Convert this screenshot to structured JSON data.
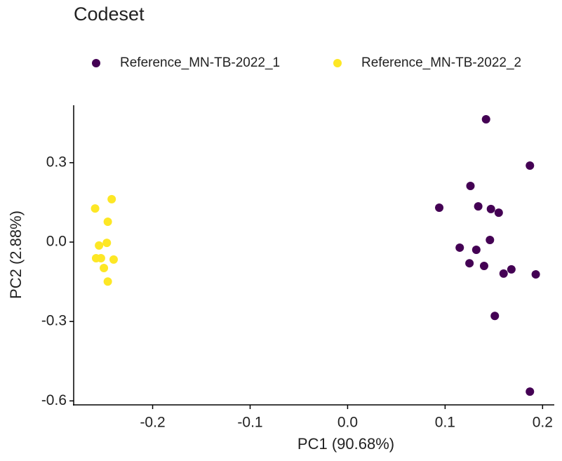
{
  "chart_data": {
    "type": "scatter",
    "title": "Codeset",
    "xlabel": "PC1 (90.68%)",
    "ylabel": "PC2 (2.88%)",
    "xlim": [
      -0.281,
      0.212
    ],
    "ylim": [
      -0.615,
      0.517
    ],
    "xticks": [
      -0.2,
      -0.1,
      {
        "value": 0,
        "label": "0.0"
      },
      0.1,
      0.2
    ],
    "yticks": [
      0.3,
      {
        "value": 0,
        "label": "0.0"
      },
      -0.3,
      -0.6
    ],
    "grid": false,
    "legend": "top",
    "series": [
      {
        "name": "Reference_MN-TB-2022_1",
        "color": "#440154",
        "x": [
          0.142,
          0.187,
          0.126,
          0.094,
          0.134,
          0.147,
          0.155,
          0.146,
          0.115,
          0.132,
          0.125,
          0.14,
          0.16,
          0.168,
          0.193,
          0.151,
          0.187
        ],
        "y": [
          0.464,
          0.289,
          0.212,
          0.13,
          0.135,
          0.125,
          0.111,
          0.008,
          -0.021,
          -0.029,
          -0.08,
          -0.09,
          -0.119,
          -0.103,
          -0.122,
          -0.279,
          -0.565
        ]
      },
      {
        "name": "Reference_MN-TB-2022_2",
        "color": "#fde725",
        "x": [
          -0.259,
          -0.242,
          -0.246,
          -0.255,
          -0.247,
          -0.258,
          -0.253,
          -0.24,
          -0.25,
          -0.246
        ],
        "y": [
          0.127,
          0.162,
          0.077,
          -0.013,
          -0.003,
          -0.061,
          -0.061,
          -0.066,
          -0.098,
          -0.149
        ]
      }
    ]
  }
}
